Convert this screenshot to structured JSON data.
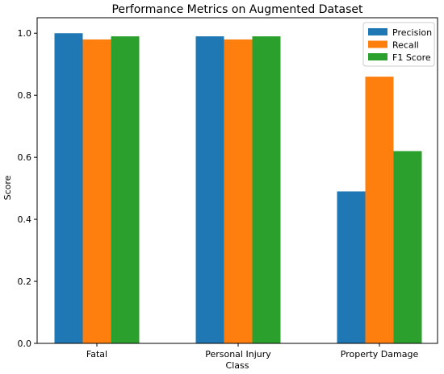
{
  "chart_data": {
    "type": "bar",
    "title": "Performance Metrics on Augmented Dataset",
    "xlabel": "Class",
    "ylabel": "Score",
    "categories": [
      "Fatal",
      "Personal Injury",
      "Property Damage"
    ],
    "series": [
      {
        "name": "Precision",
        "color": "#1f77b4",
        "values": [
          1.0,
          0.99,
          0.49
        ]
      },
      {
        "name": "Recall",
        "color": "#ff7f0e",
        "values": [
          0.98,
          0.98,
          0.86
        ]
      },
      {
        "name": "F1 Score",
        "color": "#2ca02c",
        "values": [
          0.99,
          0.99,
          0.62
        ]
      }
    ],
    "ylim": [
      0,
      1.05
    ],
    "yticks": [
      "0.0",
      "0.2",
      "0.4",
      "0.6",
      "0.8",
      "1.0"
    ],
    "grid": false,
    "legend_position": "top-right"
  }
}
